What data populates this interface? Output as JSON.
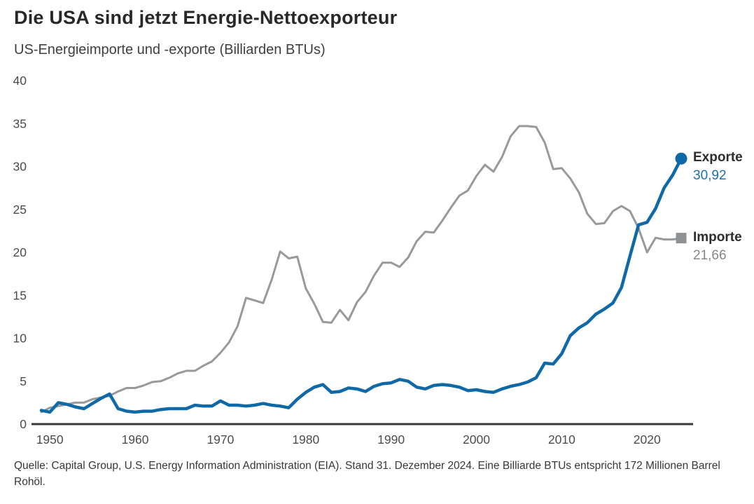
{
  "header": {
    "title": "Die USA sind jetzt Energie-Nettoexporteur",
    "subtitle": "US-Energieimporte und -exporte (Billiarden BTUs)"
  },
  "chart_data": {
    "type": "line",
    "title": "Die USA sind jetzt Energie-Nettoexporteur",
    "subtitle": "US-Energieimporte und -exporte (Billiarden BTUs)",
    "xlabel": "",
    "ylabel": "Billiarden BTUs",
    "xlim": [
      1949,
      2024
    ],
    "ylim": [
      0,
      40
    ],
    "x_ticks": [
      1950,
      1960,
      1970,
      1980,
      1990,
      2000,
      2010,
      2020
    ],
    "y_ticks": [
      0,
      5,
      10,
      15,
      20,
      25,
      30,
      35,
      40
    ],
    "grid": false,
    "legend_position": "right-end-labels",
    "x": [
      1949,
      1950,
      1951,
      1952,
      1953,
      1954,
      1955,
      1956,
      1957,
      1958,
      1959,
      1960,
      1961,
      1962,
      1963,
      1964,
      1965,
      1966,
      1967,
      1968,
      1969,
      1970,
      1971,
      1972,
      1973,
      1974,
      1975,
      1976,
      1977,
      1978,
      1979,
      1980,
      1981,
      1982,
      1983,
      1984,
      1985,
      1986,
      1987,
      1988,
      1989,
      1990,
      1991,
      1992,
      1993,
      1994,
      1995,
      1996,
      1997,
      1998,
      1999,
      2000,
      2001,
      2002,
      2003,
      2004,
      2005,
      2006,
      2007,
      2008,
      2009,
      2010,
      2011,
      2012,
      2013,
      2014,
      2015,
      2016,
      2017,
      2018,
      2019,
      2020,
      2021,
      2022,
      2023,
      2024
    ],
    "series": [
      {
        "name": "Exporte",
        "end_label": "30,92",
        "end_value": 30.92,
        "color": "#0e69a6",
        "marker": "circle",
        "line_width": 4.5,
        "values": [
          1.6,
          1.4,
          2.5,
          2.3,
          2.0,
          1.8,
          2.4,
          3.0,
          3.5,
          1.8,
          1.5,
          1.4,
          1.5,
          1.5,
          1.7,
          1.8,
          1.8,
          1.8,
          2.2,
          2.1,
          2.1,
          2.7,
          2.2,
          2.2,
          2.1,
          2.2,
          2.4,
          2.2,
          2.1,
          1.9,
          2.9,
          3.7,
          4.3,
          4.6,
          3.7,
          3.8,
          4.2,
          4.1,
          3.8,
          4.4,
          4.7,
          4.8,
          5.2,
          5.0,
          4.3,
          4.1,
          4.5,
          4.6,
          4.5,
          4.3,
          3.9,
          4.0,
          3.8,
          3.7,
          4.1,
          4.4,
          4.6,
          4.9,
          5.4,
          7.1,
          7.0,
          8.2,
          10.3,
          11.2,
          11.8,
          12.8,
          13.4,
          14.1,
          15.9,
          19.6,
          23.2,
          23.5,
          25.1,
          27.5,
          29.0,
          30.92
        ]
      },
      {
        "name": "Importe",
        "end_label": "21,66",
        "end_value": 21.66,
        "color": "#97999c",
        "marker": "square",
        "line_width": 3,
        "values": [
          1.4,
          1.9,
          2.1,
          2.3,
          2.5,
          2.5,
          2.9,
          3.1,
          3.3,
          3.8,
          4.2,
          4.2,
          4.5,
          4.9,
          5.0,
          5.4,
          5.9,
          6.2,
          6.2,
          6.8,
          7.3,
          8.3,
          9.5,
          11.4,
          14.7,
          14.4,
          14.1,
          16.8,
          20.1,
          19.3,
          19.5,
          15.8,
          14.0,
          11.9,
          11.8,
          13.3,
          12.1,
          14.2,
          15.4,
          17.3,
          18.8,
          18.8,
          18.3,
          19.4,
          21.3,
          22.4,
          22.3,
          23.7,
          25.2,
          26.6,
          27.2,
          28.9,
          30.2,
          29.4,
          31.1,
          33.5,
          34.7,
          34.7,
          34.6,
          32.8,
          29.7,
          29.8,
          28.6,
          27.0,
          24.5,
          23.3,
          23.4,
          24.8,
          25.4,
          24.8,
          22.8,
          20.0,
          21.7,
          21.5,
          21.5,
          21.66
        ]
      }
    ]
  },
  "colors": {
    "export_line": "#0e69a6",
    "import_line": "#97999c",
    "import_marker": "#8e9093",
    "export_value_text": "#1e6fab",
    "import_value_text": "#85878a",
    "axis_line": "#36383a",
    "tick_text": "#4a4c4d"
  },
  "source": {
    "text": "Quelle: Capital Group, U.S. Energy Information Administration (EIA). Stand 31. Dezember 2024. Eine Billiarde BTUs entspricht 172 Millionen Barrel Rohöl."
  }
}
